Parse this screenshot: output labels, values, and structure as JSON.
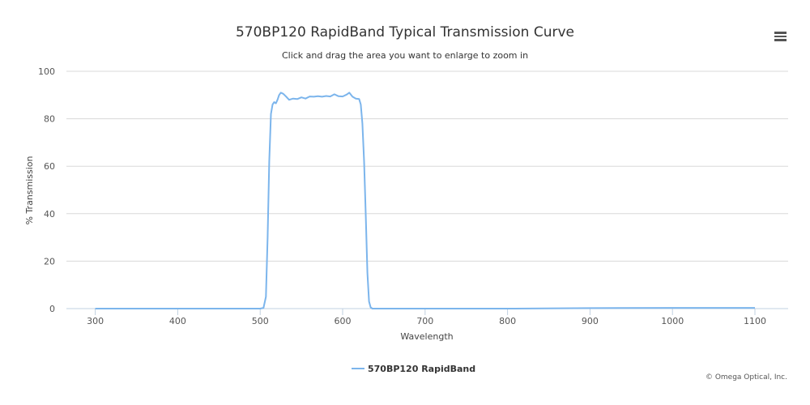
{
  "chart_data": {
    "type": "line",
    "title": "570BP120 RapidBand Typical Transmission Curve",
    "subtitle": "Click and drag the area you want to enlarge to zoom in",
    "xlabel": "Wavelength",
    "ylabel": "% Transmission",
    "xlim": [
      265,
      1100
    ],
    "ylim": [
      0,
      100
    ],
    "x_ticks": [
      300,
      400,
      500,
      600,
      700,
      800,
      900,
      1000,
      1100
    ],
    "y_ticks": [
      0,
      20,
      40,
      60,
      80,
      100
    ],
    "grid": "horizontal",
    "legend": "bottom-center",
    "series": [
      {
        "name": "570BP120 RapidBand",
        "color": "#7cb5ec",
        "x": [
          300,
          400,
          500,
          504,
          507,
          509,
          511,
          513,
          515,
          517,
          519,
          521,
          523,
          525,
          528,
          531,
          535,
          540,
          545,
          550,
          555,
          560,
          565,
          570,
          575,
          580,
          585,
          590,
          595,
          600,
          605,
          608,
          612,
          616,
          620,
          622,
          624,
          626,
          628,
          630,
          632,
          634,
          636,
          640,
          700,
          800,
          900,
          1000,
          1100
        ],
        "y": [
          0,
          0,
          0,
          0.3,
          5,
          30,
          62,
          82,
          86,
          87,
          86.5,
          88,
          90,
          91,
          90.5,
          89.5,
          88,
          88.5,
          88.3,
          89,
          88.5,
          89.4,
          89.3,
          89.5,
          89.3,
          89.6,
          89.4,
          90.3,
          89.5,
          89.4,
          90.2,
          91,
          89.3,
          88.5,
          88.3,
          86,
          78,
          62,
          40,
          15,
          3,
          0.5,
          0,
          0,
          0,
          0,
          0.2,
          0.3,
          0.3
        ]
      }
    ]
  },
  "credits": "© Omega Optical, Inc.",
  "menu_icon": "hamburger-menu-icon"
}
